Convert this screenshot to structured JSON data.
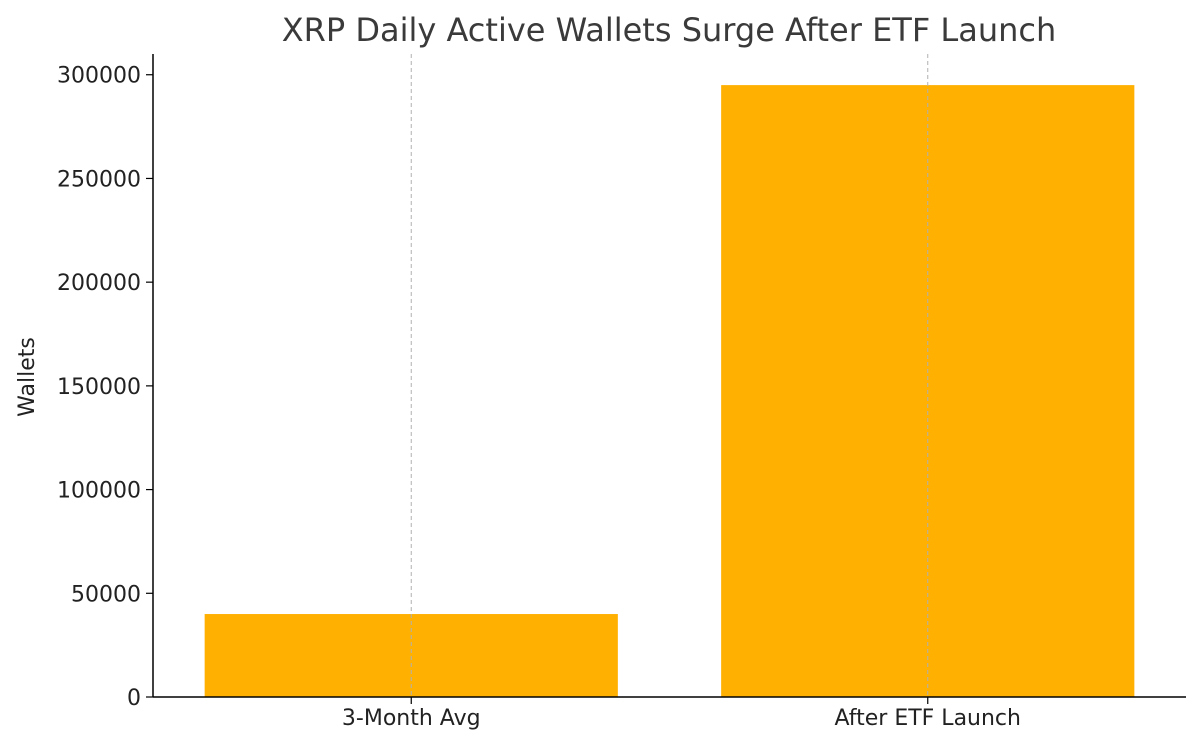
{
  "chart_data": {
    "type": "bar",
    "title": "XRP Daily Active Wallets Surge After ETF Launch",
    "xlabel": "",
    "ylabel": "Wallets",
    "categories": [
      "3-Month Avg",
      "After ETF Launch"
    ],
    "values": [
      40000,
      295000
    ],
    "ylim": [
      0,
      310000
    ],
    "yticks": [
      0,
      50000,
      100000,
      150000,
      200000,
      250000,
      300000
    ],
    "grid": "x-dashed",
    "legend": "none",
    "bar_color": "#FFB000"
  }
}
